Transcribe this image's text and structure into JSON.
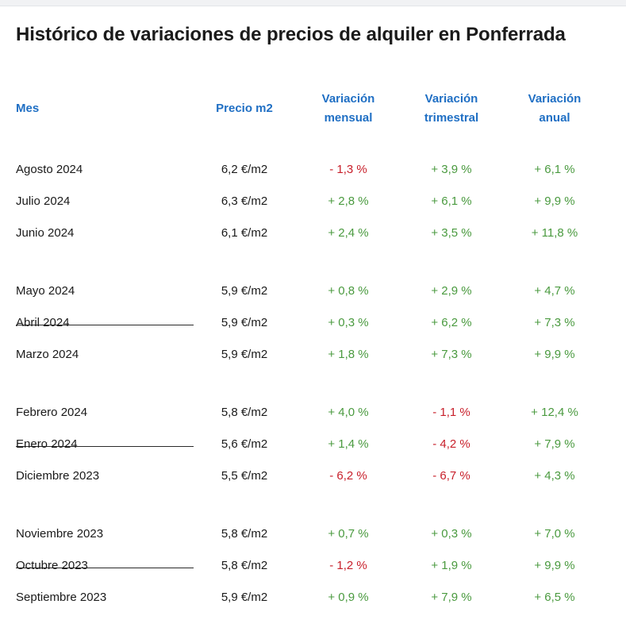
{
  "title": "Histórico de variaciones de precios de alquiler en Ponferrada",
  "colors": {
    "header": "#1f6fc4",
    "positive": "#4a9a3f",
    "negative": "#c8202b",
    "text": "#1a1a1a"
  },
  "columns": {
    "mes": "Mes",
    "precio": "Precio m2",
    "mensual_1": "Variación",
    "mensual_2": "mensual",
    "trimestral_1": "Variación",
    "trimestral_2": "trimestral",
    "anual_1": "Variación",
    "anual_2": "anual"
  },
  "rows": [
    {
      "mes": "Agosto 2024",
      "precio": "6,2 €/m2",
      "mensual": "- 1,3 %",
      "trimestral": "+ 3,9 %",
      "anual": "+ 6,1 %"
    },
    {
      "mes": "Julio 2024",
      "precio": "6,3 €/m2",
      "mensual": "+ 2,8 %",
      "trimestral": "+ 6,1 %",
      "anual": "+ 9,9 %"
    },
    {
      "mes": "Junio 2024",
      "precio": "6,1 €/m2",
      "mensual": "+ 2,4 %",
      "trimestral": "+ 3,5 %",
      "anual": "+ 11,8 %"
    },
    {
      "mes": "Mayo 2024",
      "precio": "5,9 €/m2",
      "mensual": "+ 0,8 %",
      "trimestral": "+ 2,9 %",
      "anual": "+ 4,7 %"
    },
    {
      "mes": "Abril 2024",
      "precio": "5,9 €/m2",
      "mensual": "+ 0,3 %",
      "trimestral": "+ 6,2 %",
      "anual": "+ 7,3 %"
    },
    {
      "mes": "Marzo 2024",
      "precio": "5,9 €/m2",
      "mensual": "+ 1,8 %",
      "trimestral": "+ 7,3 %",
      "anual": "+ 9,9 %"
    },
    {
      "mes": "Febrero 2024",
      "precio": "5,8 €/m2",
      "mensual": "+ 4,0 %",
      "trimestral": "- 1,1 %",
      "anual": "+ 12,4 %"
    },
    {
      "mes": "Enero 2024",
      "precio": "5,6 €/m2",
      "mensual": "+ 1,4 %",
      "trimestral": "- 4,2 %",
      "anual": "+ 7,9 %"
    },
    {
      "mes": "Diciembre 2023",
      "precio": "5,5 €/m2",
      "mensual": "- 6,2 %",
      "trimestral": "- 6,7 %",
      "anual": "+ 4,3 %"
    },
    {
      "mes": "Noviembre 2023",
      "precio": "5,8 €/m2",
      "mensual": "+ 0,7 %",
      "trimestral": "+ 0,3 %",
      "anual": "+ 7,0 %"
    },
    {
      "mes": "Octubre 2023",
      "precio": "5,8 €/m2",
      "mensual": "- 1,2 %",
      "trimestral": "+ 1,9 %",
      "anual": "+ 9,9 %"
    },
    {
      "mes": "Septiembre 2023",
      "precio": "5,9 €/m2",
      "mensual": "+ 0,9 %",
      "trimestral": "+ 7,9 %",
      "anual": "+ 6,5 %"
    }
  ]
}
